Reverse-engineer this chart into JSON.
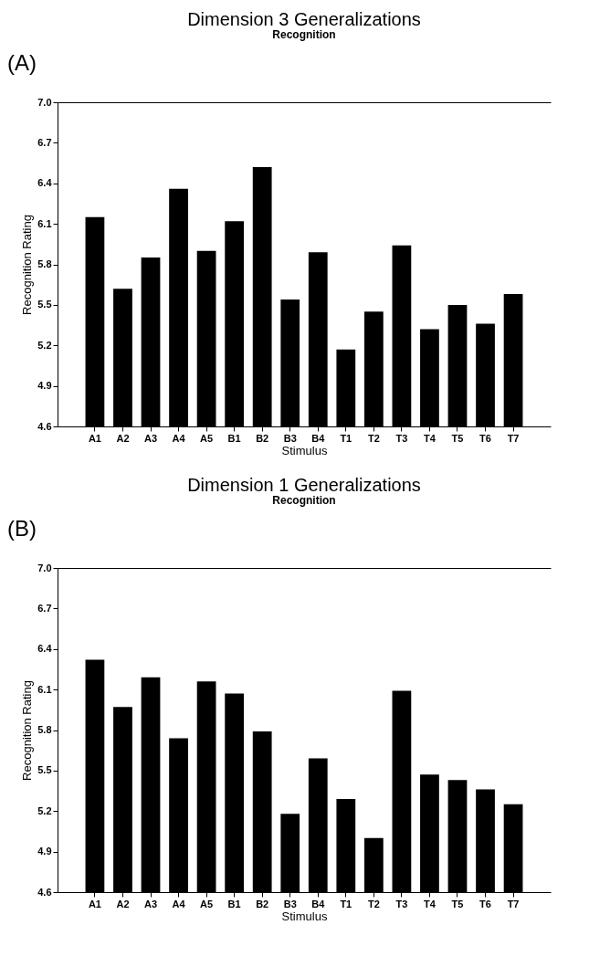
{
  "chart_data": [
    {
      "type": "bar",
      "title": "Dimension 3 Generalizations",
      "subtitle": "Recognition",
      "xlabel": "Stimulus",
      "ylabel": "Recognition Rating",
      "annotations": [
        "(A)"
      ],
      "categories": [
        "A1",
        "A2",
        "A3",
        "A4",
        "A5",
        "B1",
        "B2",
        "B3",
        "B4",
        "T1",
        "T2",
        "T3",
        "T4",
        "T5",
        "T6",
        "T7"
      ],
      "values": [
        6.15,
        5.62,
        5.85,
        6.36,
        5.9,
        6.12,
        6.52,
        5.54,
        5.89,
        5.17,
        5.45,
        5.94,
        5.32,
        5.5,
        5.36,
        5.58
      ],
      "color": "#000000",
      "ylim": [
        4.6,
        7.0
      ],
      "yticks": [
        4.6,
        4.9,
        5.2,
        5.5,
        5.8,
        6.1,
        6.4,
        6.7,
        {
          "value": 7.0,
          "label": "7.0"
        }
      ],
      "grid": false
    },
    {
      "type": "bar",
      "title": "Dimension 1 Generalizations",
      "subtitle": "Recognition",
      "xlabel": "Stimulus",
      "ylabel": "Recognition Rating",
      "annotations": [
        "(B)"
      ],
      "categories": [
        "A1",
        "A2",
        "A3",
        "A4",
        "A5",
        "B1",
        "B2",
        "B3",
        "B4",
        "T1",
        "T2",
        "T3",
        "T4",
        "T5",
        "T6",
        "T7"
      ],
      "values": [
        6.32,
        5.97,
        6.19,
        5.74,
        6.16,
        6.07,
        5.79,
        5.18,
        5.59,
        5.29,
        5.0,
        6.09,
        5.47,
        5.43,
        5.36,
        5.25
      ],
      "color": "#000000",
      "ylim": [
        4.6,
        7.0
      ],
      "yticks": [
        4.6,
        4.9,
        5.2,
        5.5,
        5.8,
        6.1,
        6.4,
        6.7,
        {
          "value": 7.0,
          "label": "7.0"
        }
      ],
      "grid": false
    }
  ]
}
